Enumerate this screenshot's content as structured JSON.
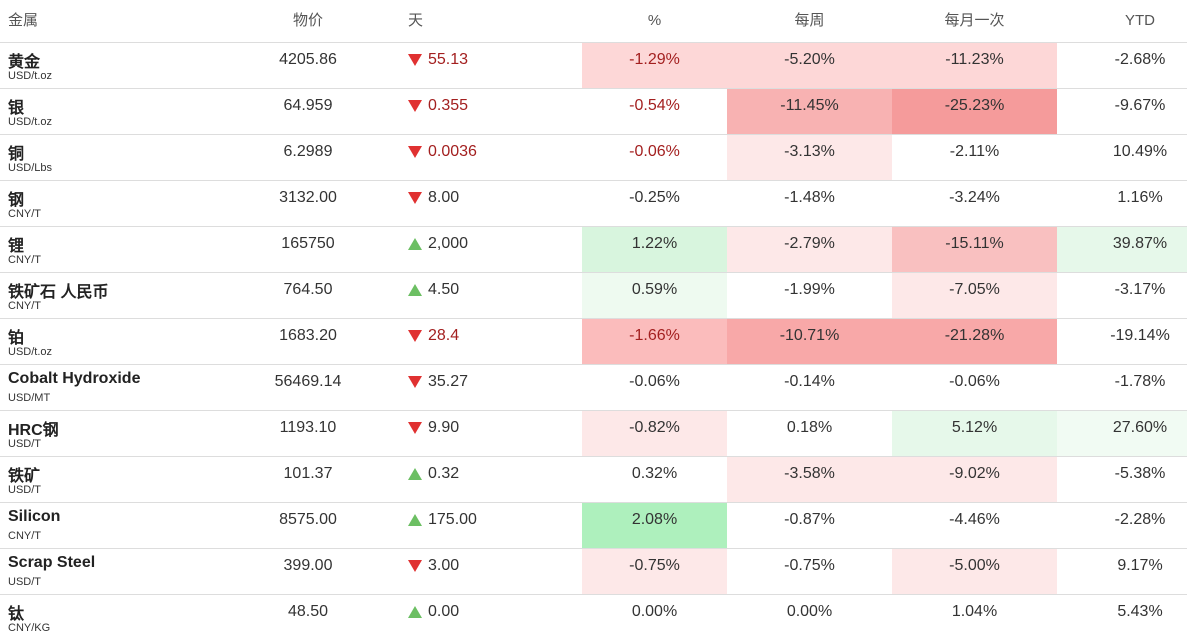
{
  "header": {
    "name": "金属",
    "price": "物价",
    "day": "天",
    "pct": "%",
    "week": "每周",
    "month": "每月一次",
    "ytd": "YTD"
  },
  "rows": [
    {
      "name": "黄金",
      "unit": "USD/t.oz",
      "price": "4205.86",
      "direction": "down",
      "change": "55.13",
      "pct": "-1.29%",
      "week": "-5.20%",
      "month": "-11.23%",
      "ytd": "-2.68%",
      "text_color": "#a31f1f",
      "colors": {
        "pct": "#fdd7d7",
        "week": "#fdd7d7",
        "month": "#fdd7d7"
      }
    },
    {
      "name": "银",
      "unit": "USD/t.oz",
      "price": "64.959",
      "direction": "down",
      "change": "0.355",
      "pct": "-0.54%",
      "week": "-11.45%",
      "month": "-25.23%",
      "ytd": "-9.67%",
      "text_color": "#a31f1f",
      "colors": {
        "week": "#f8b2b2",
        "month": "#f59b9b"
      }
    },
    {
      "name": "铜",
      "unit": "USD/Lbs",
      "price": "6.2989",
      "direction": "down",
      "change": "0.0036",
      "pct": "-0.06%",
      "week": "-3.13%",
      "month": "-2.11%",
      "ytd": "10.49%",
      "text_color": "#a31f1f",
      "colors": {
        "week": "#fde8e8"
      }
    },
    {
      "name": "钢",
      "unit": "CNY/T",
      "price": "3132.00",
      "direction": "down",
      "change": "8.00",
      "pct": "-0.25%",
      "week": "-1.48%",
      "month": "-3.24%",
      "ytd": "1.16%",
      "colors": {}
    },
    {
      "name": "锂",
      "unit": "CNY/T",
      "price": "165750",
      "direction": "up",
      "change": "2,000",
      "pct": "1.22%",
      "week": "-2.79%",
      "month": "-15.11%",
      "ytd": "39.87%",
      "colors": {
        "pct": "#d8f5de",
        "week": "#fde8e8",
        "month": "#f9c0c0",
        "ytd": "#e6f8ea"
      }
    },
    {
      "name": "铁矿石 人民币",
      "unit": "CNY/T",
      "price": "764.50",
      "direction": "up",
      "change": "4.50",
      "pct": "0.59%",
      "week": "-1.99%",
      "month": "-7.05%",
      "ytd": "-3.17%",
      "colors": {
        "pct": "#eefaf0",
        "month": "#fde8e8"
      }
    },
    {
      "name": "铂",
      "unit": "USD/t.oz",
      "price": "1683.20",
      "direction": "down",
      "change": "28.4",
      "pct": "-1.66%",
      "week": "-10.71%",
      "month": "-21.28%",
      "ytd": "-19.14%",
      "text_color": "#a31f1f",
      "colors": {
        "pct": "#fbbcbc",
        "week": "#f8a8a8",
        "month": "#f8a8a8"
      }
    },
    {
      "name": "Cobalt Hydroxide",
      "unit": "USD/MT",
      "price": "56469.14",
      "direction": "down",
      "change": "35.27",
      "pct": "-0.06%",
      "week": "-0.14%",
      "month": "-0.06%",
      "ytd": "-1.78%",
      "colors": {}
    },
    {
      "name": "HRC钢",
      "unit": "USD/T",
      "price": "1193.10",
      "direction": "down",
      "change": "9.90",
      "pct": "-0.82%",
      "week": "0.18%",
      "month": "5.12%",
      "ytd": "27.60%",
      "colors": {
        "pct": "#fde8e8",
        "month": "#e6f8ea",
        "ytd": "#f1fbf3"
      }
    },
    {
      "name": "铁矿",
      "unit": "USD/T",
      "price": "101.37",
      "direction": "up",
      "change": "0.32",
      "pct": "0.32%",
      "week": "-3.58%",
      "month": "-9.02%",
      "ytd": "-5.38%",
      "colors": {
        "week": "#fde8e8",
        "month": "#fde8e8"
      }
    },
    {
      "name": "Silicon",
      "unit": "CNY/T",
      "price": "8575.00",
      "direction": "up",
      "change": "175.00",
      "pct": "2.08%",
      "week": "-0.87%",
      "month": "-4.46%",
      "ytd": "-2.28%",
      "colors": {
        "pct": "#aef0bd"
      }
    },
    {
      "name": "Scrap Steel",
      "unit": "USD/T",
      "price": "399.00",
      "direction": "down",
      "change": "3.00",
      "pct": "-0.75%",
      "week": "-0.75%",
      "month": "-5.00%",
      "ytd": "9.17%",
      "colors": {
        "pct": "#fde8e8",
        "month": "#fde8e8"
      }
    },
    {
      "name": "钛",
      "unit": "CNY/KG",
      "price": "48.50",
      "direction": "up",
      "change": "0.00",
      "pct": "0.00%",
      "week": "0.00%",
      "month": "1.04%",
      "ytd": "5.43%",
      "colors": {}
    }
  ]
}
